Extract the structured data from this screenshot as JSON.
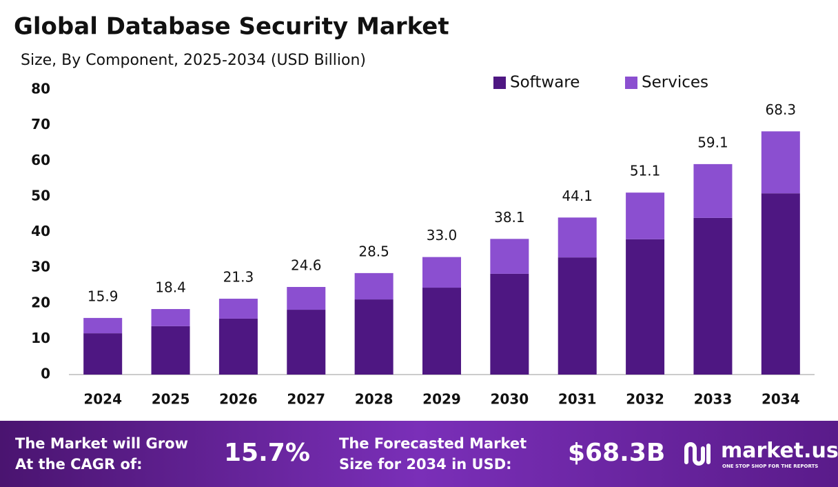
{
  "chart_data": {
    "type": "stacked_bar",
    "title": "Global Database Security Market",
    "subtitle": "Size, By Component, 2025-2034 (USD Billion)",
    "categories": [
      "2024",
      "2025",
      "2026",
      "2027",
      "2028",
      "2029",
      "2030",
      "2031",
      "2032",
      "2033",
      "2034"
    ],
    "series": [
      {
        "name": "Software",
        "color": "#4e1782",
        "values": [
          11.6,
          13.6,
          15.7,
          18.2,
          21.1,
          24.4,
          28.3,
          32.9,
          38.0,
          44.0,
          50.9
        ]
      },
      {
        "name": "Services",
        "color": "#8b4fd0",
        "values": [
          4.3,
          4.8,
          5.6,
          6.4,
          7.4,
          8.6,
          9.8,
          11.2,
          13.1,
          15.1,
          17.4
        ]
      }
    ],
    "totals": {
      "values": [
        15.9,
        18.4,
        21.3,
        24.6,
        28.5,
        33.0,
        38.1,
        44.1,
        51.1,
        59.1,
        68.3
      ],
      "value_labels": [
        "15.9",
        "18.4",
        "21.3",
        "24.6",
        "28.5",
        "33.0",
        "38.1",
        "44.1",
        "51.1",
        "59.1",
        "68.3"
      ]
    },
    "ylim": [
      0,
      80
    ],
    "yticks": [
      0,
      10,
      20,
      30,
      40,
      50,
      60,
      70,
      80
    ],
    "grid": false,
    "legend": "top-right"
  },
  "footer": {
    "cagr_text": [
      "The Market will Grow",
      "At the CAGR of:"
    ],
    "cagr_value": "15.7%",
    "forecast_text": [
      "The Forecasted Market",
      "Size for 2034 in USD:"
    ],
    "forecast_value": "$68.3B",
    "brand": "market.us",
    "tagline": "ONE STOP SHOP FOR THE REPORTS"
  }
}
